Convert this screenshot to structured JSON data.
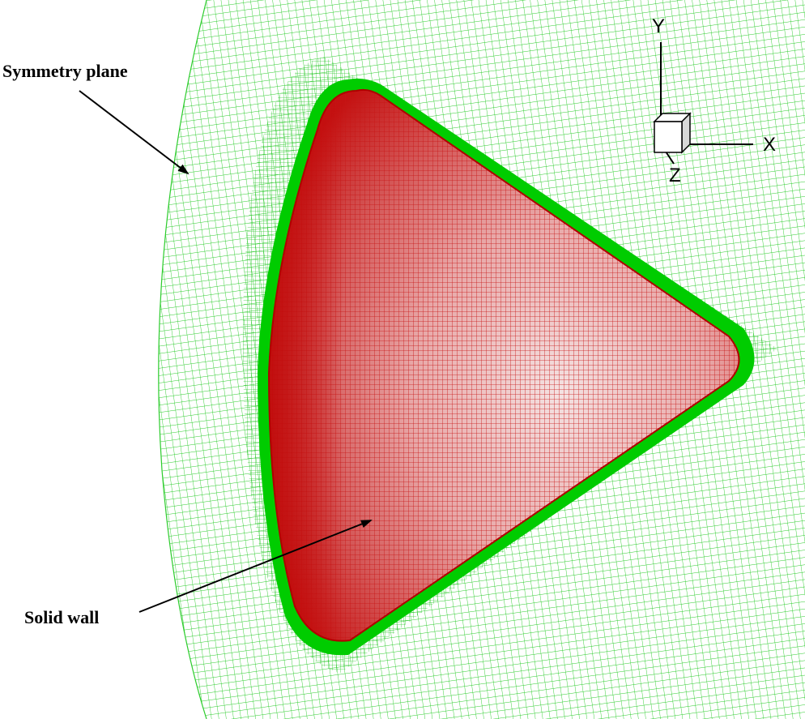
{
  "labels": {
    "symmetry_plane": "Symmetry plane",
    "solid_wall": "Solid wall"
  },
  "axes": {
    "x": "X",
    "y": "Y",
    "z": "Z"
  },
  "colors": {
    "background": "#ffffff",
    "field_mesh": "#22cc22",
    "boundary_layer": "#00cc00",
    "wall_mesh": "#cc1111",
    "wall_fill_light": "#f0d8d8",
    "wall_fill_dark": "#c01010"
  }
}
